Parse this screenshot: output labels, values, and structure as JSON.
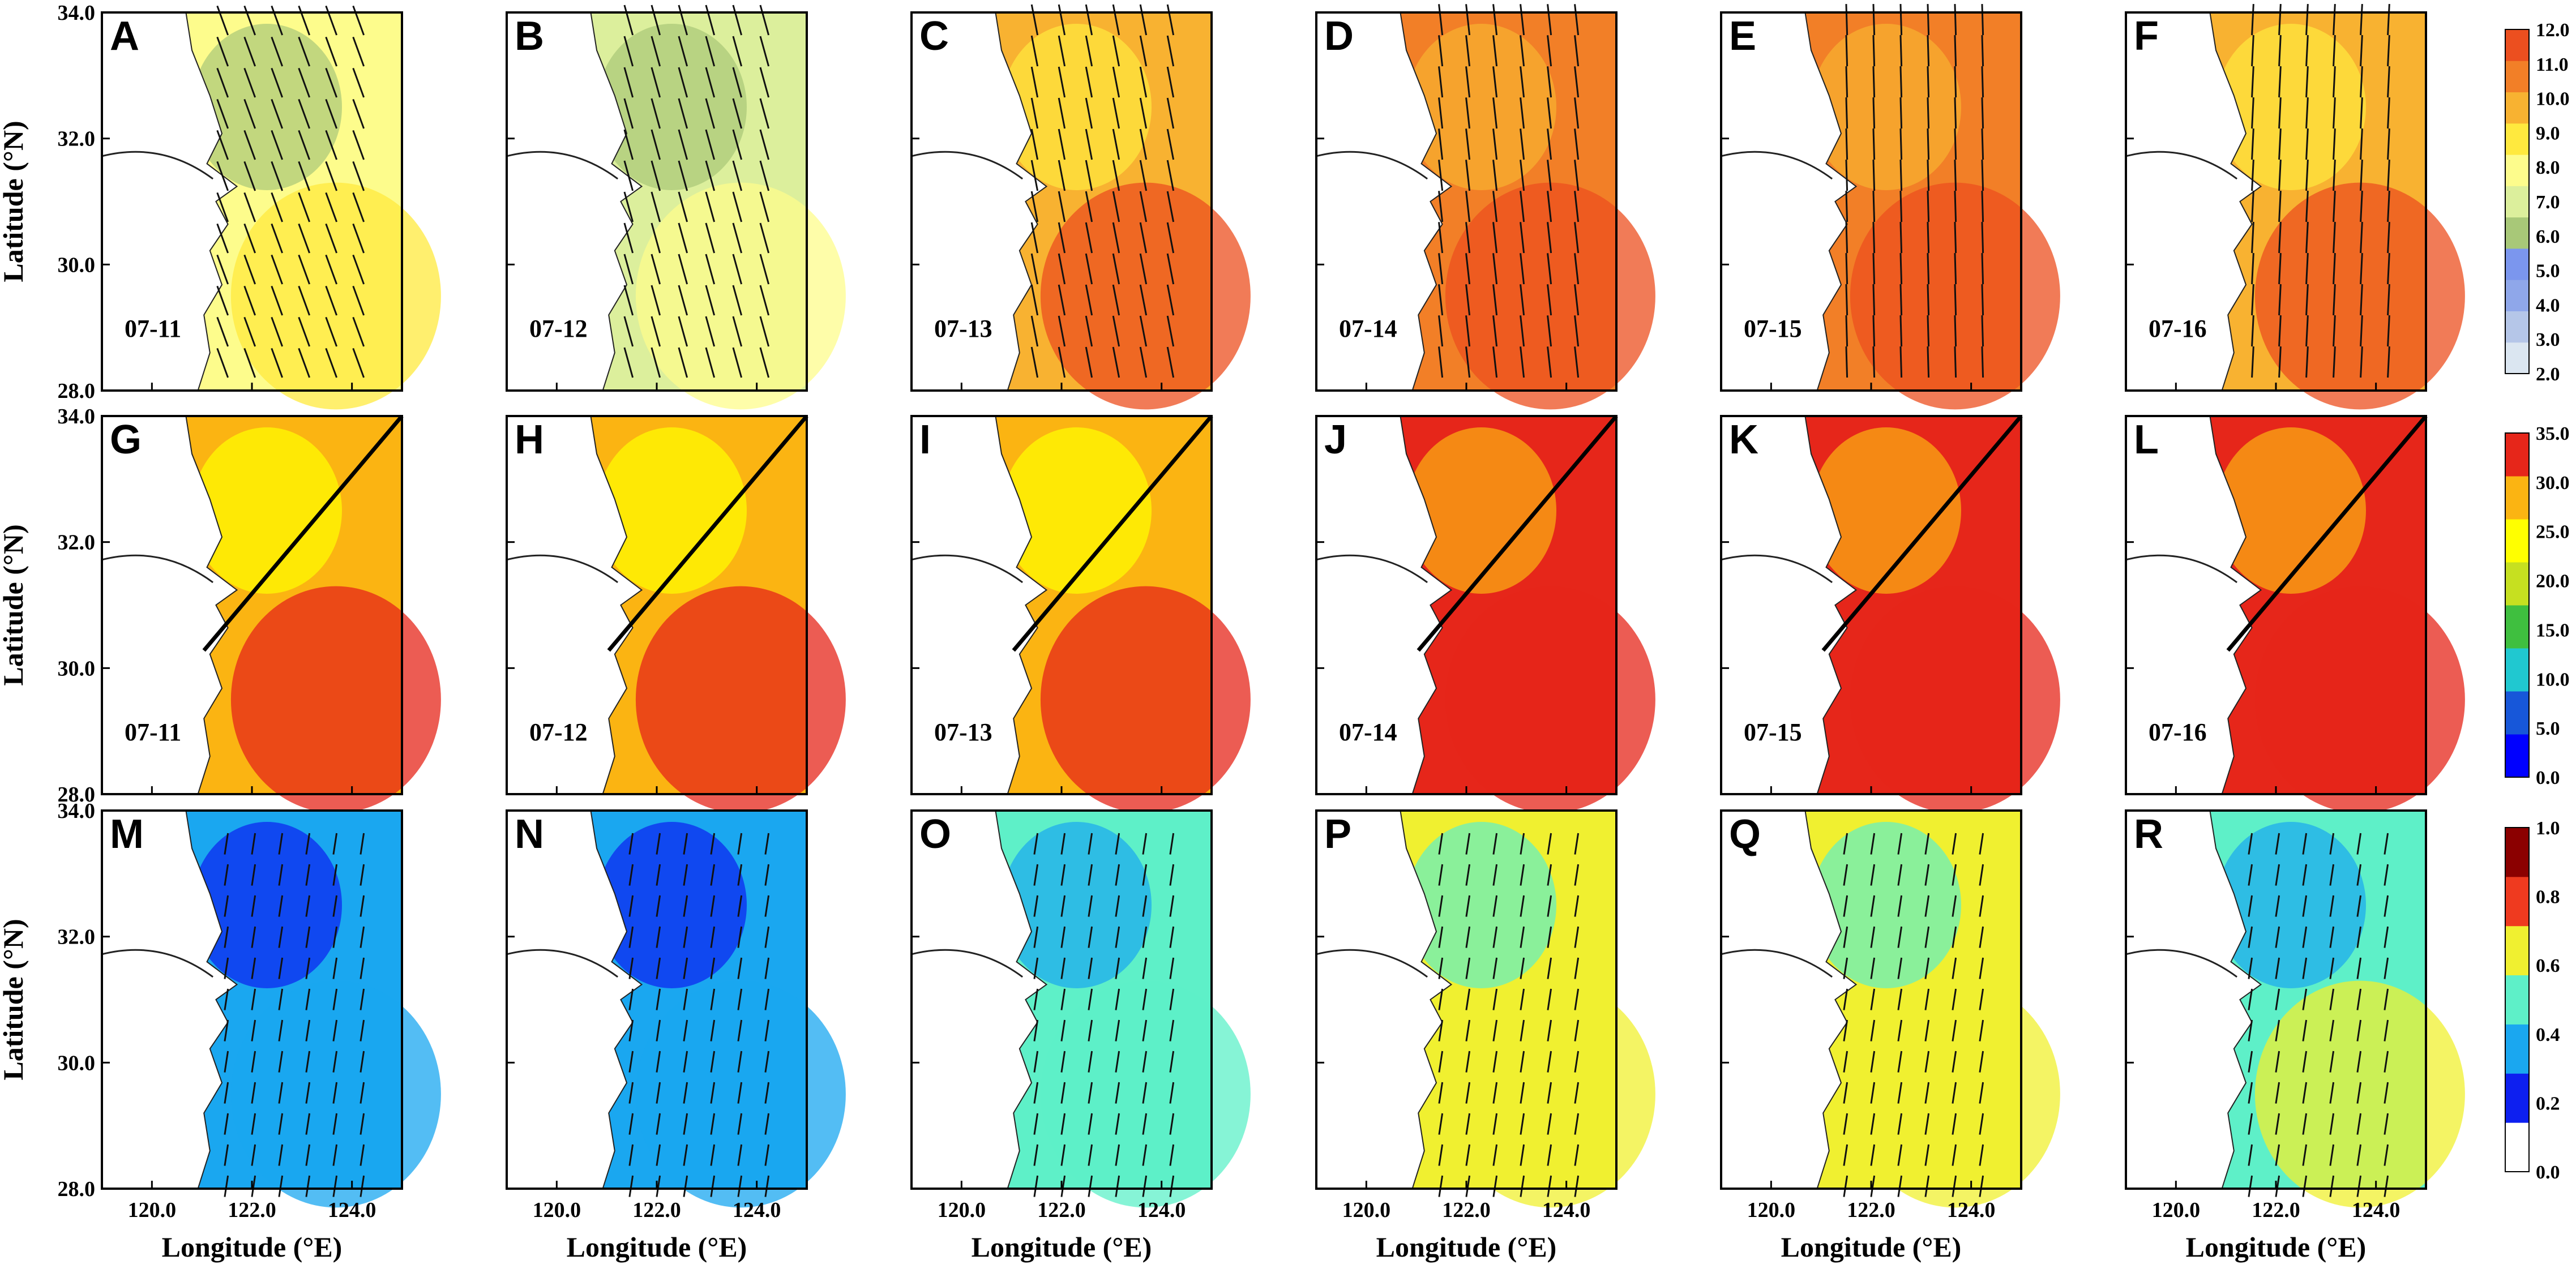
{
  "chart_data": {
    "type": "heatmap",
    "layout": {
      "rows": 3,
      "cols": 6
    },
    "x_axis": {
      "label": "Longitude (°E)",
      "range": [
        119.0,
        125.0
      ],
      "ticks": [
        "120.0",
        "122.0",
        "124.0"
      ],
      "tick_values": [
        120,
        122,
        124
      ]
    },
    "y_axis": {
      "label": "Latitude (°N)",
      "range": [
        28.0,
        34.0
      ],
      "ticks": [
        "28.0",
        "30.0",
        "32.0",
        "34.0"
      ],
      "tick_values": [
        28,
        30,
        32,
        34
      ]
    },
    "dates": [
      "07-11",
      "07-12",
      "07-13",
      "07-14",
      "07-15",
      "07-16"
    ],
    "rows": [
      {
        "row": 1,
        "panels": [
          "A",
          "B",
          "C",
          "D",
          "E",
          "F"
        ],
        "colorbar": {
          "range": [
            2,
            12
          ],
          "labels": [
            "12.0",
            "11.0",
            "10.0",
            "9.0",
            "8.0",
            "7.0",
            "6.0",
            "5.0",
            "4.0",
            "3.0",
            "2.0"
          ],
          "colors": [
            "#dbe6f1",
            "#b5c6e8",
            "#8fa7ea",
            "#7b96ee",
            "#a8c878",
            "#dcef9c",
            "#fdfc8c",
            "#ffe93e",
            "#f8b231",
            "#f27f27",
            "#ec4f1f"
          ]
        },
        "field_value": [
          7.5,
          6.8,
          10.0,
          11.0,
          11.0,
          10.0
        ],
        "vectors": true,
        "section_line": false
      },
      {
        "row": 2,
        "panels": [
          "G",
          "H",
          "I",
          "J",
          "K",
          "L"
        ],
        "colorbar": {
          "range": [
            0,
            35
          ],
          "labels": [
            "35.0",
            "30.0",
            "25.0",
            "20.0",
            "15.0",
            "10.0",
            "5.0",
            "0.0"
          ],
          "colors": [
            "#0000ff",
            "#1757d9",
            "#20c8d0",
            "#3fbf3f",
            "#c6e020",
            "#ffff00",
            "#fbb412",
            "#e6261a"
          ]
        },
        "field_value": [
          30,
          30,
          30,
          31,
          31,
          31
        ],
        "vectors": false,
        "section_line": true
      },
      {
        "row": 3,
        "panels": [
          "M",
          "N",
          "O",
          "P",
          "Q",
          "R"
        ],
        "colorbar": {
          "range": [
            0,
            1
          ],
          "labels": [
            "1.0",
            "0.8",
            "0.6",
            "0.4",
            "0.2",
            "0.0"
          ],
          "colors": [
            "#ffffff",
            "#0d1ff0",
            "#1aa7f0",
            "#5ef0c8",
            "#f0f030",
            "#ef3a1f",
            "#8b0000"
          ]
        },
        "field_value": [
          0.3,
          0.32,
          0.45,
          0.6,
          0.6,
          0.5
        ],
        "vectors": true,
        "section_line": false
      }
    ]
  }
}
